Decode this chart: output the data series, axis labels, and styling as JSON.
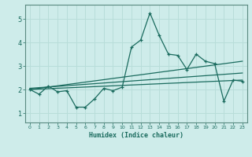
{
  "xlabel": "Humidex (Indice chaleur)",
  "background_color": "#ceecea",
  "grid_color": "#b8ddd9",
  "line_color": "#1a6b5e",
  "spine_color": "#5a8a80",
  "xlim": [
    -0.5,
    23.5
  ],
  "ylim": [
    0.6,
    5.6
  ],
  "yticks": [
    1,
    2,
    3,
    4,
    5
  ],
  "xticks": [
    0,
    1,
    2,
    3,
    4,
    5,
    6,
    7,
    8,
    9,
    10,
    11,
    12,
    13,
    14,
    15,
    16,
    17,
    18,
    19,
    20,
    21,
    22,
    23
  ],
  "main_x": [
    0,
    1,
    2,
    3,
    4,
    5,
    6,
    7,
    8,
    9,
    10,
    11,
    12,
    13,
    14,
    15,
    16,
    17,
    18,
    19,
    20,
    21,
    22,
    23
  ],
  "main_y": [
    2.0,
    1.8,
    2.15,
    1.9,
    1.95,
    1.25,
    1.25,
    1.6,
    2.05,
    1.95,
    2.1,
    3.8,
    4.1,
    5.25,
    4.3,
    3.5,
    3.45,
    2.85,
    3.5,
    3.2,
    3.1,
    1.5,
    2.4,
    2.35
  ],
  "line1_x": [
    0,
    23
  ],
  "line1_y": [
    2.0,
    2.4
  ],
  "line2_x": [
    0,
    23
  ],
  "line2_y": [
    2.0,
    3.2
  ],
  "line3_x": [
    0,
    23
  ],
  "line3_y": [
    2.05,
    2.7
  ]
}
